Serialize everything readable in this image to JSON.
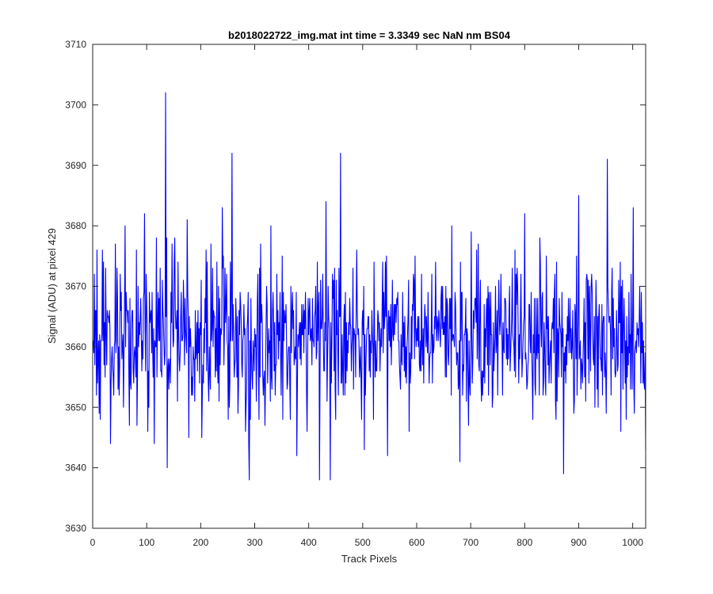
{
  "chart_data": {
    "type": "line",
    "title": "b2018022722_img.mat int time = 3.3349 sec  NaN nm BS04",
    "xlabel": "Track Pixels",
    "ylabel": "Signal (ADU) at pixel 429",
    "xlim": [
      0,
      1024
    ],
    "ylim": [
      3630,
      3710
    ],
    "xticks": [
      0,
      100,
      200,
      300,
      400,
      500,
      600,
      700,
      800,
      900,
      1000
    ],
    "yticks": [
      3630,
      3640,
      3650,
      3660,
      3670,
      3680,
      3690,
      3700,
      3710
    ],
    "grid": false,
    "series_color": "#0000ff",
    "series": [
      {
        "x_start": 1,
        "x_step": 1,
        "approx_mean": 3662,
        "noise_range": [
          3638,
          3702
        ],
        "notable_points": [
          {
            "x": 3,
            "y": 3672
          },
          {
            "x": 12,
            "y": 3649
          },
          {
            "x": 18,
            "y": 3676
          },
          {
            "x": 33,
            "y": 3644
          },
          {
            "x": 42,
            "y": 3677
          },
          {
            "x": 60,
            "y": 3680
          },
          {
            "x": 68,
            "y": 3647
          },
          {
            "x": 96,
            "y": 3682
          },
          {
            "x": 102,
            "y": 3646
          },
          {
            "x": 135,
            "y": 3702
          },
          {
            "x": 138,
            "y": 3640
          },
          {
            "x": 152,
            "y": 3678
          },
          {
            "x": 175,
            "y": 3681
          },
          {
            "x": 178,
            "y": 3645
          },
          {
            "x": 202,
            "y": 3645
          },
          {
            "x": 240,
            "y": 3683
          },
          {
            "x": 258,
            "y": 3692
          },
          {
            "x": 290,
            "y": 3638
          },
          {
            "x": 330,
            "y": 3680
          },
          {
            "x": 352,
            "y": 3648
          },
          {
            "x": 378,
            "y": 3642
          },
          {
            "x": 420,
            "y": 3638
          },
          {
            "x": 432,
            "y": 3684
          },
          {
            "x": 440,
            "y": 3638
          },
          {
            "x": 459,
            "y": 3692
          },
          {
            "x": 503,
            "y": 3643
          },
          {
            "x": 546,
            "y": 3642
          },
          {
            "x": 597,
            "y": 3675
          },
          {
            "x": 680,
            "y": 3641
          },
          {
            "x": 800,
            "y": 3682
          },
          {
            "x": 872,
            "y": 3639
          },
          {
            "x": 900,
            "y": 3685
          },
          {
            "x": 953,
            "y": 3691
          },
          {
            "x": 978,
            "y": 3646
          },
          {
            "x": 1001,
            "y": 3683
          },
          {
            "x": 1024,
            "y": 3643
          }
        ]
      }
    ]
  }
}
